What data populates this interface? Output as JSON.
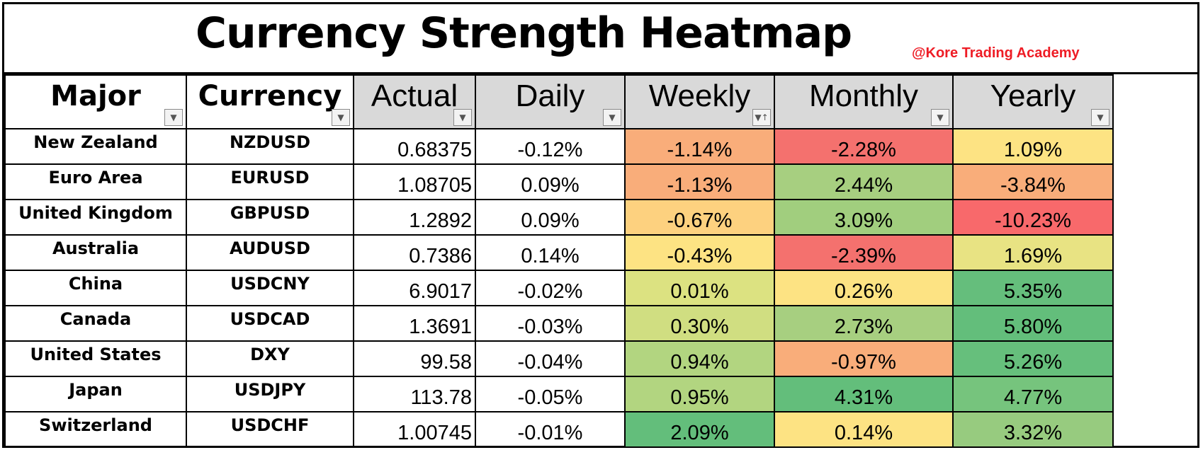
{
  "title": "Currency Strength Heatmap",
  "credit": "@Kore Trading Academy",
  "headers": {
    "major": "Major",
    "currency": "Currency",
    "actual": "Actual",
    "daily": "Daily",
    "weekly": "Weekly",
    "monthly": "Monthly",
    "yearly": "Yearly"
  },
  "filter_icons": {
    "default": "▼",
    "sorted": "▼↑"
  },
  "rows": [
    {
      "major": "New Zealand",
      "currency": "NZDUSD",
      "actual": "0.68375",
      "daily": "-0.12%",
      "weekly": "-1.14%",
      "monthly": "-2.28%",
      "yearly": "1.09%"
    },
    {
      "major": "Euro Area",
      "currency": "EURUSD",
      "actual": "1.08705",
      "daily": "0.09%",
      "weekly": "-1.13%",
      "monthly": "2.44%",
      "yearly": "-3.84%"
    },
    {
      "major": "United Kingdom",
      "currency": "GBPUSD",
      "actual": "1.2892",
      "daily": "0.09%",
      "weekly": "-0.67%",
      "monthly": "3.09%",
      "yearly": "-10.23%"
    },
    {
      "major": "Australia",
      "currency": "AUDUSD",
      "actual": "0.7386",
      "daily": "0.14%",
      "weekly": "-0.43%",
      "monthly": "-2.39%",
      "yearly": "1.69%"
    },
    {
      "major": "China",
      "currency": "USDCNY",
      "actual": "6.9017",
      "daily": "-0.02%",
      "weekly": "0.01%",
      "monthly": "0.26%",
      "yearly": "5.35%"
    },
    {
      "major": "Canada",
      "currency": "USDCAD",
      "actual": "1.3691",
      "daily": "-0.03%",
      "weekly": "0.30%",
      "monthly": "2.73%",
      "yearly": "5.80%"
    },
    {
      "major": "United States",
      "currency": "DXY",
      "actual": "99.58",
      "daily": "-0.04%",
      "weekly": "0.94%",
      "monthly": "-0.97%",
      "yearly": "5.26%"
    },
    {
      "major": "Japan",
      "currency": "USDJPY",
      "actual": "113.78",
      "daily": "-0.05%",
      "weekly": "0.95%",
      "monthly": "4.31%",
      "yearly": "4.77%"
    },
    {
      "major": "Switzerland",
      "currency": "USDCHF",
      "actual": "1.00745",
      "daily": "-0.01%",
      "weekly": "2.09%",
      "monthly": "0.14%",
      "yearly": "3.32%"
    }
  ],
  "heat_colors": [
    {
      "weekly": "#f9ad7a",
      "monthly": "#f4716e",
      "yearly": "#fde383"
    },
    {
      "weekly": "#f9ad7a",
      "monthly": "#a7cf80",
      "yearly": "#f9ad7a"
    },
    {
      "weekly": "#fdd17f",
      "monthly": "#a1ce7e",
      "yearly": "#f8696b"
    },
    {
      "weekly": "#fde383",
      "monthly": "#f4716e",
      "yearly": "#e8e383"
    },
    {
      "weekly": "#dce281",
      "monthly": "#fde383",
      "yearly": "#65be7c"
    },
    {
      "weekly": "#d0de81",
      "monthly": "#a7cf80",
      "yearly": "#63be7b"
    },
    {
      "weekly": "#b2d580",
      "monthly": "#f9ad7a",
      "yearly": "#66bf7c"
    },
    {
      "weekly": "#b2d580",
      "monthly": "#63be7b",
      "yearly": "#76c47d"
    },
    {
      "weekly": "#63be7b",
      "monthly": "#fde383",
      "yearly": "#97cb7f"
    }
  ]
}
